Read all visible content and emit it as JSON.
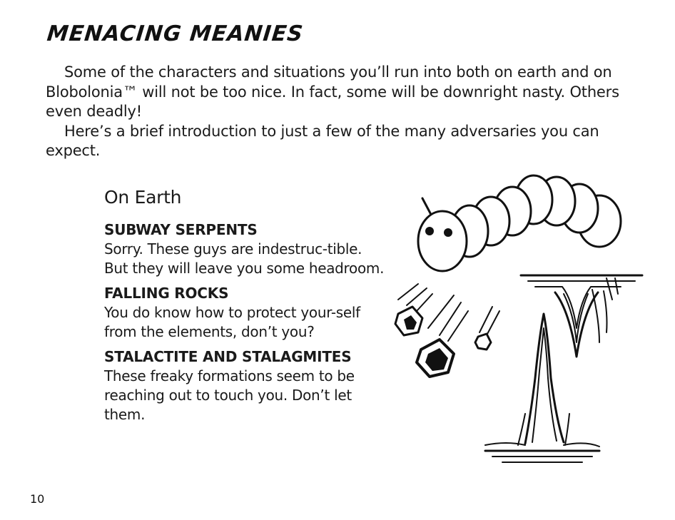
{
  "title": "MENACING MEANIES",
  "intro": {
    "paragraph1": "Some of the characters and situations you’ll run into both on earth and on Blobolonia™ will not be too nice. In fact, some will be downright nasty. Others even deadly!",
    "paragraph2": "Here’s a brief introduction to just a few of the many adversaries you can expect."
  },
  "section": {
    "heading": "On Earth",
    "items": [
      {
        "title": "SUBWAY SERPENTS",
        "description": "Sorry. These guys are indestruc-tible. But they will leave you some headroom."
      },
      {
        "title": "FALLING ROCKS",
        "description": "You do know how to protect your-self from the elements, don’t you?"
      },
      {
        "title": "STALACTITE AND STALAGMITES",
        "description": "These freaky formations seem to be reaching out to touch you. Don’t let them."
      }
    ]
  },
  "page_number": "10",
  "illustration": {
    "icons": [
      "subway-serpent-icon",
      "falling-rock-icon",
      "stalactite-icon",
      "stalagmite-icon"
    ]
  }
}
